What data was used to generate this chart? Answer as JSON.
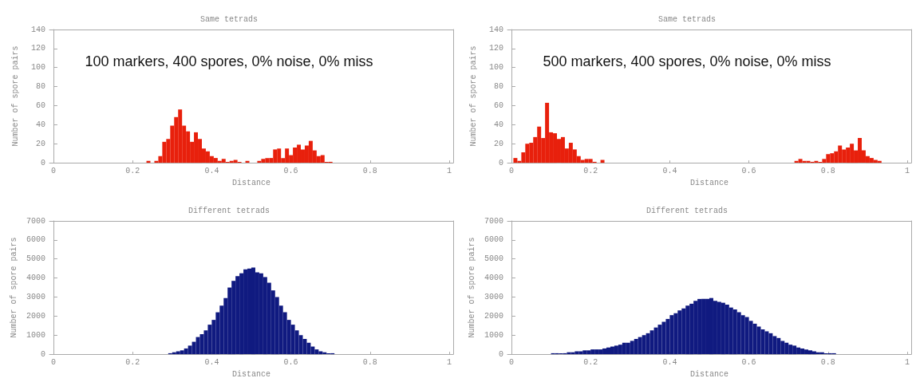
{
  "chart_data": [
    {
      "type": "histogram",
      "title": "Same tetrads",
      "xlabel": "Distance",
      "ylabel": "Number of spore pairs",
      "annotations": [
        "100 markers, 400 spores, 0% noise, 0% miss"
      ],
      "color": "#e8200c",
      "xlim": [
        -0.01,
        1.01
      ],
      "xticks": [
        0,
        0.2,
        0.4,
        0.6,
        0.8,
        1
      ],
      "ylim": [
        0,
        140
      ],
      "yticks": [
        0,
        20,
        40,
        60,
        80,
        100,
        120,
        140
      ],
      "grid": false,
      "bins": [
        0.235,
        0.245,
        0.255,
        0.265,
        0.275,
        0.285,
        0.295,
        0.305,
        0.315,
        0.325,
        0.335,
        0.345,
        0.355,
        0.365,
        0.375,
        0.385,
        0.395,
        0.405,
        0.415,
        0.425,
        0.435,
        0.445,
        0.455,
        0.465,
        0.475,
        0.485,
        0.495,
        0.505,
        0.515,
        0.525,
        0.535,
        0.545,
        0.555,
        0.565,
        0.575,
        0.585,
        0.595,
        0.605,
        0.615,
        0.625,
        0.635,
        0.645,
        0.655,
        0.665,
        0.675,
        0.685,
        0.695,
        0.705
      ],
      "values": [
        2,
        0,
        2,
        7,
        22,
        25,
        39,
        48,
        56,
        39,
        33,
        22,
        32,
        25,
        15,
        12,
        7,
        5,
        2,
        4,
        1,
        2,
        3,
        1,
        0,
        2,
        0,
        0,
        2,
        4,
        5,
        5,
        14,
        15,
        5,
        15,
        8,
        16,
        19,
        14,
        18,
        23,
        13,
        7,
        8,
        1,
        1
      ]
    },
    {
      "type": "histogram",
      "title": "Same tetrads",
      "xlabel": "Distance",
      "ylabel": "Number of spore pairs",
      "annotations": [
        "500 markers, 400 spores, 0% noise, 0% miss"
      ],
      "color": "#e8200c",
      "xlim": [
        -0.01,
        1.01
      ],
      "xticks": [
        0,
        0.2,
        0.4,
        0.6,
        0.8,
        1
      ],
      "ylim": [
        0,
        140
      ],
      "yticks": [
        0,
        20,
        40,
        60,
        80,
        100,
        120,
        140
      ],
      "grid": false,
      "bins": [
        0.005,
        0.015,
        0.025,
        0.035,
        0.045,
        0.055,
        0.065,
        0.075,
        0.085,
        0.095,
        0.105,
        0.115,
        0.125,
        0.135,
        0.145,
        0.155,
        0.165,
        0.175,
        0.185,
        0.195,
        0.205,
        0.215,
        0.225,
        0.235,
        0.245,
        0.255,
        0.265,
        0.275,
        0.285,
        0.295,
        0.305,
        0.315,
        0.325,
        0.335,
        0.345,
        0.355,
        0.365,
        0.375,
        0.385,
        0.395,
        0.405,
        0.415,
        0.425,
        0.435,
        0.445,
        0.455,
        0.465,
        0.475,
        0.485,
        0.495,
        0.505,
        0.515,
        0.525,
        0.535,
        0.545,
        0.555,
        0.565,
        0.575,
        0.585,
        0.595,
        0.605,
        0.615,
        0.625,
        0.635,
        0.645,
        0.655,
        0.665,
        0.675,
        0.685,
        0.695,
        0.705,
        0.715,
        0.725,
        0.735,
        0.745,
        0.755,
        0.765,
        0.775,
        0.785,
        0.795,
        0.805,
        0.815,
        0.825,
        0.835,
        0.845,
        0.855,
        0.865,
        0.875,
        0.885,
        0.895,
        0.905,
        0.915,
        0.925,
        0.935
      ],
      "values": [
        5,
        2,
        11,
        20,
        21,
        27,
        38,
        26,
        63,
        32,
        31,
        25,
        27,
        15,
        21,
        14,
        7,
        3,
        4,
        4,
        1,
        0,
        3,
        0,
        0,
        0,
        0,
        0,
        0,
        0,
        0,
        0,
        0,
        0,
        0,
        0,
        0,
        0,
        0,
        0,
        0,
        0,
        0,
        0,
        0,
        0,
        0,
        0,
        0,
        0,
        0,
        0,
        0,
        0,
        0,
        0,
        0,
        0,
        0,
        0,
        0,
        0,
        0,
        0,
        0,
        0,
        0,
        0,
        0,
        0,
        0,
        2,
        4,
        2,
        2,
        1,
        2,
        1,
        4,
        9,
        10,
        12,
        18,
        14,
        16,
        20,
        13,
        26,
        13,
        7,
        5,
        3,
        2
      ]
    },
    {
      "type": "histogram",
      "title": "Different tetrads",
      "xlabel": "Distance",
      "ylabel": "Number of spore pairs",
      "color": "#101a80",
      "xlim": [
        -0.01,
        1.01
      ],
      "xticks": [
        0,
        0.2,
        0.4,
        0.6,
        0.8,
        1
      ],
      "ylim": [
        0,
        7000
      ],
      "yticks": [
        0,
        1000,
        2000,
        3000,
        4000,
        5000,
        6000,
        7000
      ],
      "grid": false,
      "bins": [
        0.29,
        0.3,
        0.31,
        0.32,
        0.33,
        0.34,
        0.35,
        0.36,
        0.37,
        0.38,
        0.39,
        0.4,
        0.41,
        0.42,
        0.43,
        0.44,
        0.45,
        0.46,
        0.47,
        0.48,
        0.49,
        0.5,
        0.51,
        0.52,
        0.53,
        0.54,
        0.55,
        0.56,
        0.57,
        0.58,
        0.59,
        0.6,
        0.61,
        0.62,
        0.63,
        0.64,
        0.65,
        0.66,
        0.67,
        0.68,
        0.69,
        0.7,
        0.71
      ],
      "values": [
        50,
        100,
        150,
        200,
        300,
        450,
        650,
        900,
        1050,
        1250,
        1550,
        1800,
        2200,
        2550,
        2950,
        3500,
        3850,
        4100,
        4250,
        4450,
        4500,
        4550,
        4300,
        4250,
        4050,
        3750,
        3350,
        3000,
        2550,
        2200,
        1800,
        1550,
        1250,
        1000,
        800,
        600,
        400,
        250,
        150,
        100,
        50,
        50
      ]
    },
    {
      "type": "histogram",
      "title": "Different tetrads",
      "xlabel": "Distance",
      "ylabel": "Number of spore pairs",
      "color": "#101a80",
      "xlim": [
        -0.01,
        1.01
      ],
      "xticks": [
        0,
        0.2,
        0.4,
        0.6,
        0.8,
        1
      ],
      "ylim": [
        0,
        7000
      ],
      "yticks": [
        0,
        1000,
        2000,
        3000,
        4000,
        5000,
        6000,
        7000
      ],
      "grid": false,
      "bins": [
        0.08,
        0.09,
        0.1,
        0.11,
        0.12,
        0.13,
        0.14,
        0.15,
        0.16,
        0.17,
        0.18,
        0.19,
        0.2,
        0.21,
        0.22,
        0.23,
        0.24,
        0.25,
        0.26,
        0.27,
        0.28,
        0.29,
        0.3,
        0.31,
        0.32,
        0.33,
        0.34,
        0.35,
        0.36,
        0.37,
        0.38,
        0.39,
        0.4,
        0.41,
        0.42,
        0.43,
        0.44,
        0.45,
        0.46,
        0.47,
        0.48,
        0.49,
        0.5,
        0.51,
        0.52,
        0.53,
        0.54,
        0.55,
        0.56,
        0.57,
        0.58,
        0.59,
        0.6,
        0.61,
        0.62,
        0.63,
        0.64,
        0.65,
        0.66,
        0.67,
        0.68,
        0.69,
        0.7,
        0.71,
        0.72,
        0.73,
        0.74,
        0.75,
        0.76,
        0.77,
        0.78,
        0.79,
        0.8,
        0.81,
        0.82,
        0.83,
        0.84,
        0.85
      ],
      "values": [
        0,
        0,
        50,
        50,
        50,
        50,
        100,
        100,
        150,
        150,
        200,
        200,
        250,
        250,
        250,
        300,
        350,
        400,
        450,
        500,
        600,
        600,
        700,
        800,
        900,
        1000,
        1100,
        1250,
        1400,
        1550,
        1700,
        1850,
        2050,
        2150,
        2300,
        2400,
        2550,
        2650,
        2800,
        2900,
        2900,
        2900,
        2950,
        2800,
        2750,
        2700,
        2600,
        2450,
        2350,
        2200,
        2050,
        1950,
        1750,
        1600,
        1450,
        1300,
        1200,
        1100,
        950,
        850,
        700,
        600,
        500,
        450,
        350,
        300,
        250,
        200,
        150,
        100,
        100,
        50,
        50,
        50,
        0,
        0,
        0
      ]
    }
  ]
}
